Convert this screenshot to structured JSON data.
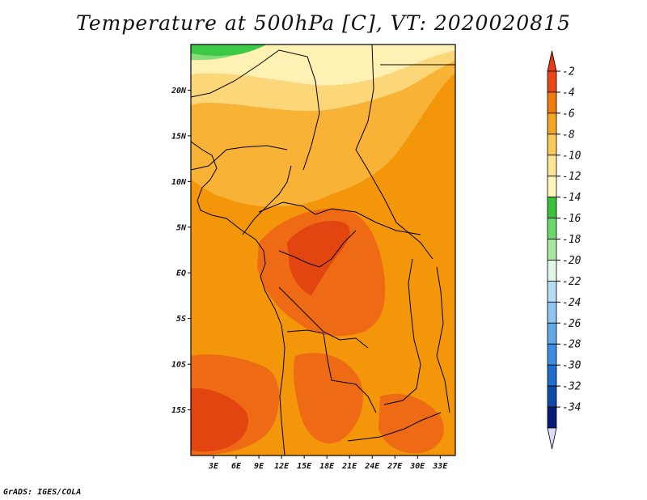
{
  "title": "Temperature at 500hPa [C], VT: 2020020815",
  "credit": "GrADS: IGES/COLA",
  "map": {
    "region": "Central Africa",
    "lon_range": [
      0,
      35
    ],
    "lat_range": [
      -20,
      25
    ],
    "x_ticks": [
      {
        "lon": 3,
        "label": "3E"
      },
      {
        "lon": 6,
        "label": "6E"
      },
      {
        "lon": 9,
        "label": "9E"
      },
      {
        "lon": 12,
        "label": "12E"
      },
      {
        "lon": 15,
        "label": "15E"
      },
      {
        "lon": 18,
        "label": "18E"
      },
      {
        "lon": 21,
        "label": "21E"
      },
      {
        "lon": 24,
        "label": "24E"
      },
      {
        "lon": 27,
        "label": "27E"
      },
      {
        "lon": 30,
        "label": "30E"
      },
      {
        "lon": 33,
        "label": "33E"
      }
    ],
    "y_ticks": [
      {
        "lat": 20,
        "label": "20N"
      },
      {
        "lat": 15,
        "label": "15N"
      },
      {
        "lat": 10,
        "label": "10N"
      },
      {
        "lat": 5,
        "label": "5N"
      },
      {
        "lat": 0,
        "label": "EQ"
      },
      {
        "lat": -5,
        "label": "5S"
      },
      {
        "lat": -10,
        "label": "10S"
      },
      {
        "lat": -15,
        "label": "15S"
      }
    ]
  },
  "colorbar": {
    "levels": [
      "-2",
      "-4",
      "-6",
      "-8",
      "-10",
      "-12",
      "-14",
      "-16",
      "-18",
      "-20",
      "-22",
      "-24",
      "-26",
      "-28",
      "-30",
      "-32",
      "-34"
    ],
    "colors": [
      "#e94814",
      "#f07c0c",
      "#f5a524",
      "#fbca56",
      "#fde593",
      "#fff5b8",
      "#38c43a",
      "#6ad86a",
      "#a8e8a2",
      "#e0f5e4",
      "#b6dcf6",
      "#8ec5f1",
      "#62a9ea",
      "#3d8ee2",
      "#1e6ed0",
      "#0d4aaa",
      "#061a78"
    ],
    "top_arrow_color": "#e93a12",
    "bottom_arrow_color": "#dcdcf8"
  },
  "field_colors": {
    "deep": "#e2450f",
    "warm": "#ee6a14",
    "mid": "#f3960a",
    "light": "#f8b235",
    "pale": "#fcd77a",
    "cream": "#fff1b3",
    "green": "#3ec848",
    "lightgreen": "#86dc76"
  }
}
